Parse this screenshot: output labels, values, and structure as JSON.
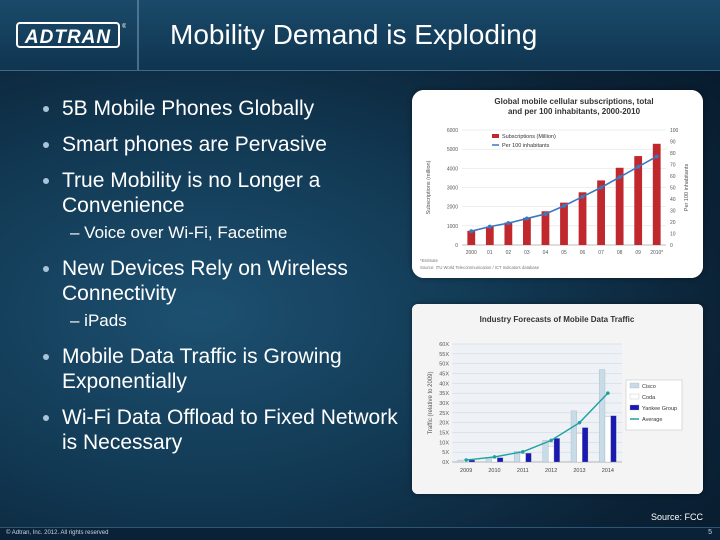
{
  "header": {
    "logo_text": "ADTRAN",
    "title": "Mobility Demand is Exploding"
  },
  "bullets": [
    {
      "text": "5B Mobile Phones Globally"
    },
    {
      "text": "Smart phones are Pervasive"
    },
    {
      "text": "True Mobility is no Longer a Convenience",
      "sub": "– Voice over Wi-Fi, Facetime"
    },
    {
      "text": "New Devices Rely on Wireless Connectivity",
      "sub": "– iPads"
    },
    {
      "text": "Mobile Data Traffic is Growing Exponentially"
    },
    {
      "text": "Wi-Fi Data Offload to Fixed Network is Necessary"
    }
  ],
  "source": "Source: FCC",
  "footer": {
    "copyright": "© Adtran, Inc. 2012. All rights reserved",
    "page": "5"
  },
  "chart_data": [
    {
      "type": "bar",
      "title": "Global mobile cellular subscriptions, total and per 100 inhabitants, 2000-2010",
      "ylabel": "Subscriptions (million)",
      "y2label": "Per 100 inhabitants",
      "categories": [
        "2000",
        "01",
        "02",
        "03",
        "04",
        "05",
        "06",
        "07",
        "08",
        "09",
        "2010*"
      ],
      "ylim": [
        0,
        6000
      ],
      "yticks": [
        0,
        1000,
        2000,
        3000,
        4000,
        5000,
        6000
      ],
      "y2lim": [
        0,
        100
      ],
      "y2ticks": [
        0,
        10,
        20,
        30,
        40,
        50,
        60,
        70,
        80,
        90,
        100
      ],
      "series": [
        {
          "name": "Subscriptions (Million)",
          "type": "bar",
          "color": "#c0282d",
          "values": [
            740,
            960,
            1170,
            1420,
            1760,
            2210,
            2750,
            3370,
            4030,
            4640,
            5280
          ]
        },
        {
          "name": "Per 100 inhabitants",
          "type": "line",
          "axis": "right",
          "color": "#3a78c0",
          "values": [
            12,
            16,
            19,
            23,
            27,
            34,
            42,
            50,
            59,
            68,
            77
          ]
        }
      ],
      "notes": [
        "*Estimate",
        "Source: ITU World Telecommunication / ICT Indicators database"
      ],
      "legend": "top-left"
    },
    {
      "type": "bar",
      "title": "Industry Forecasts of Mobile Data Traffic",
      "ylabel": "Traffic (relative to 2009)",
      "categories": [
        "2009",
        "2010",
        "2011",
        "2012",
        "2013",
        "2014"
      ],
      "ylim": [
        0,
        60
      ],
      "yticks": [
        "0X",
        "5X",
        "10X",
        "15X",
        "20X",
        "25X",
        "30X",
        "35X",
        "40X",
        "45X",
        "50X",
        "55X",
        "60X"
      ],
      "series": [
        {
          "name": "Cisco",
          "color": "#c8dce8",
          "values": [
            1,
            2.4,
            5.5,
            11,
            26,
            47
          ]
        },
        {
          "name": "Coda",
          "color": "#ffffff",
          "values": [
            1,
            2.0,
            4.2,
            8,
            14.5,
            23
          ]
        },
        {
          "name": "Yankee Group",
          "color": "#1a1ab0",
          "values": [
            1,
            2.2,
            4.5,
            12,
            17.5,
            23.5
          ]
        },
        {
          "name": "Average",
          "type": "line",
          "color": "#1fa0a0",
          "values": [
            1,
            2.6,
            5.2,
            11,
            20,
            35
          ]
        }
      ],
      "legend": "right"
    }
  ]
}
